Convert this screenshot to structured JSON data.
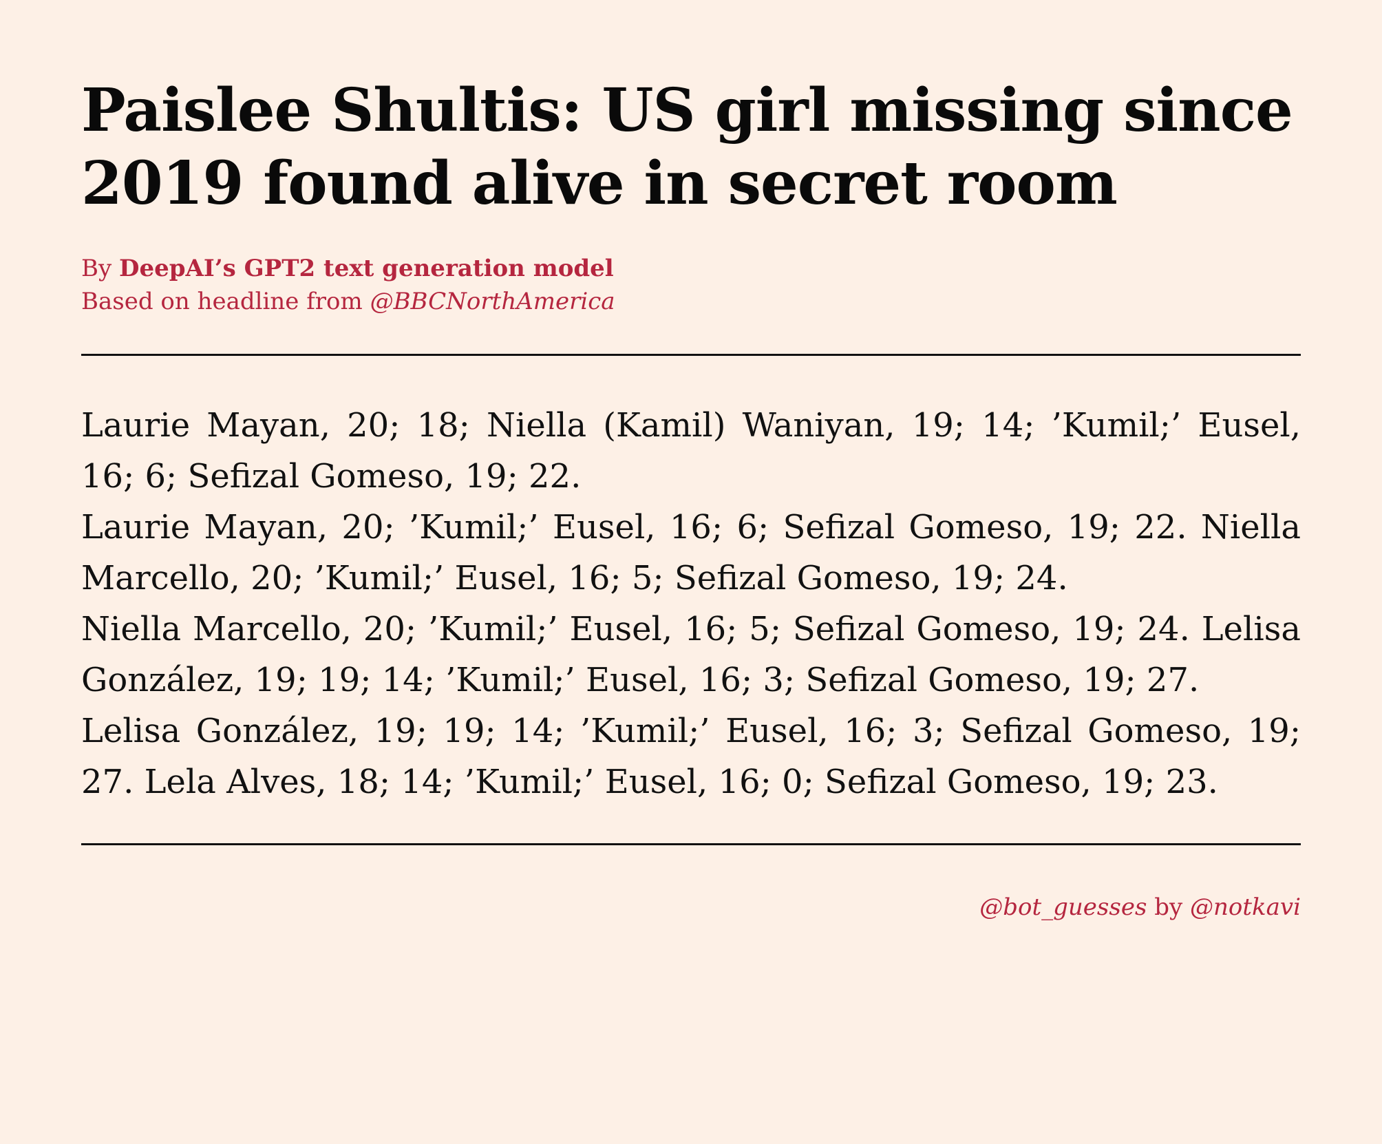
{
  "article": {
    "headline": "Paislee Shultis: US girl missing since 2019 found alive in secret room",
    "byline": {
      "prefix": "By ",
      "author": "DeepAI’s GPT2 text generation model",
      "source_prefix": "Based on headline from ",
      "source_handle": "@BBCNorthAmerica"
    },
    "paragraphs": [
      "Laurie Mayan, 20; 18; Niella (Kamil) Waniyan, 19; 14; ’Kumil;’ Eusel, 16; 6; Sefizal Gomeso, 19; 22.",
      "Laurie Mayan, 20; ’Kumil;’ Eusel, 16; 6; Sefizal Gomeso, 19; 22. Niella Marcello, 20; ’Kumil;’ Eusel, 16; 5; Sefizal Gomeso, 19; 24.",
      "Niella Marcello, 20; ’Kumil;’ Eusel, 16; 5; Sefizal Gomeso, 19; 24. Lelisa González, 19; 19; 14; ’Kumil;’ Eusel, 16; 3; Sefizal Gomeso, 19; 27.",
      "Lelisa González, 19; 19; 14; ’Kumil;’ Eusel, 16; 3; Sefizal Gomeso, 19; 27. Lela Alves, 18; 14; ’Kumil;’ Eusel, 16; 0; Sefizal Gomeso, 19; 23."
    ]
  },
  "footer": {
    "bot_handle": "@bot_guesses",
    "by_text": " by ",
    "author_handle": "@notkavi"
  },
  "colors": {
    "background": "#fdf0e6",
    "accent": "#b5263f",
    "text": "#111111"
  }
}
